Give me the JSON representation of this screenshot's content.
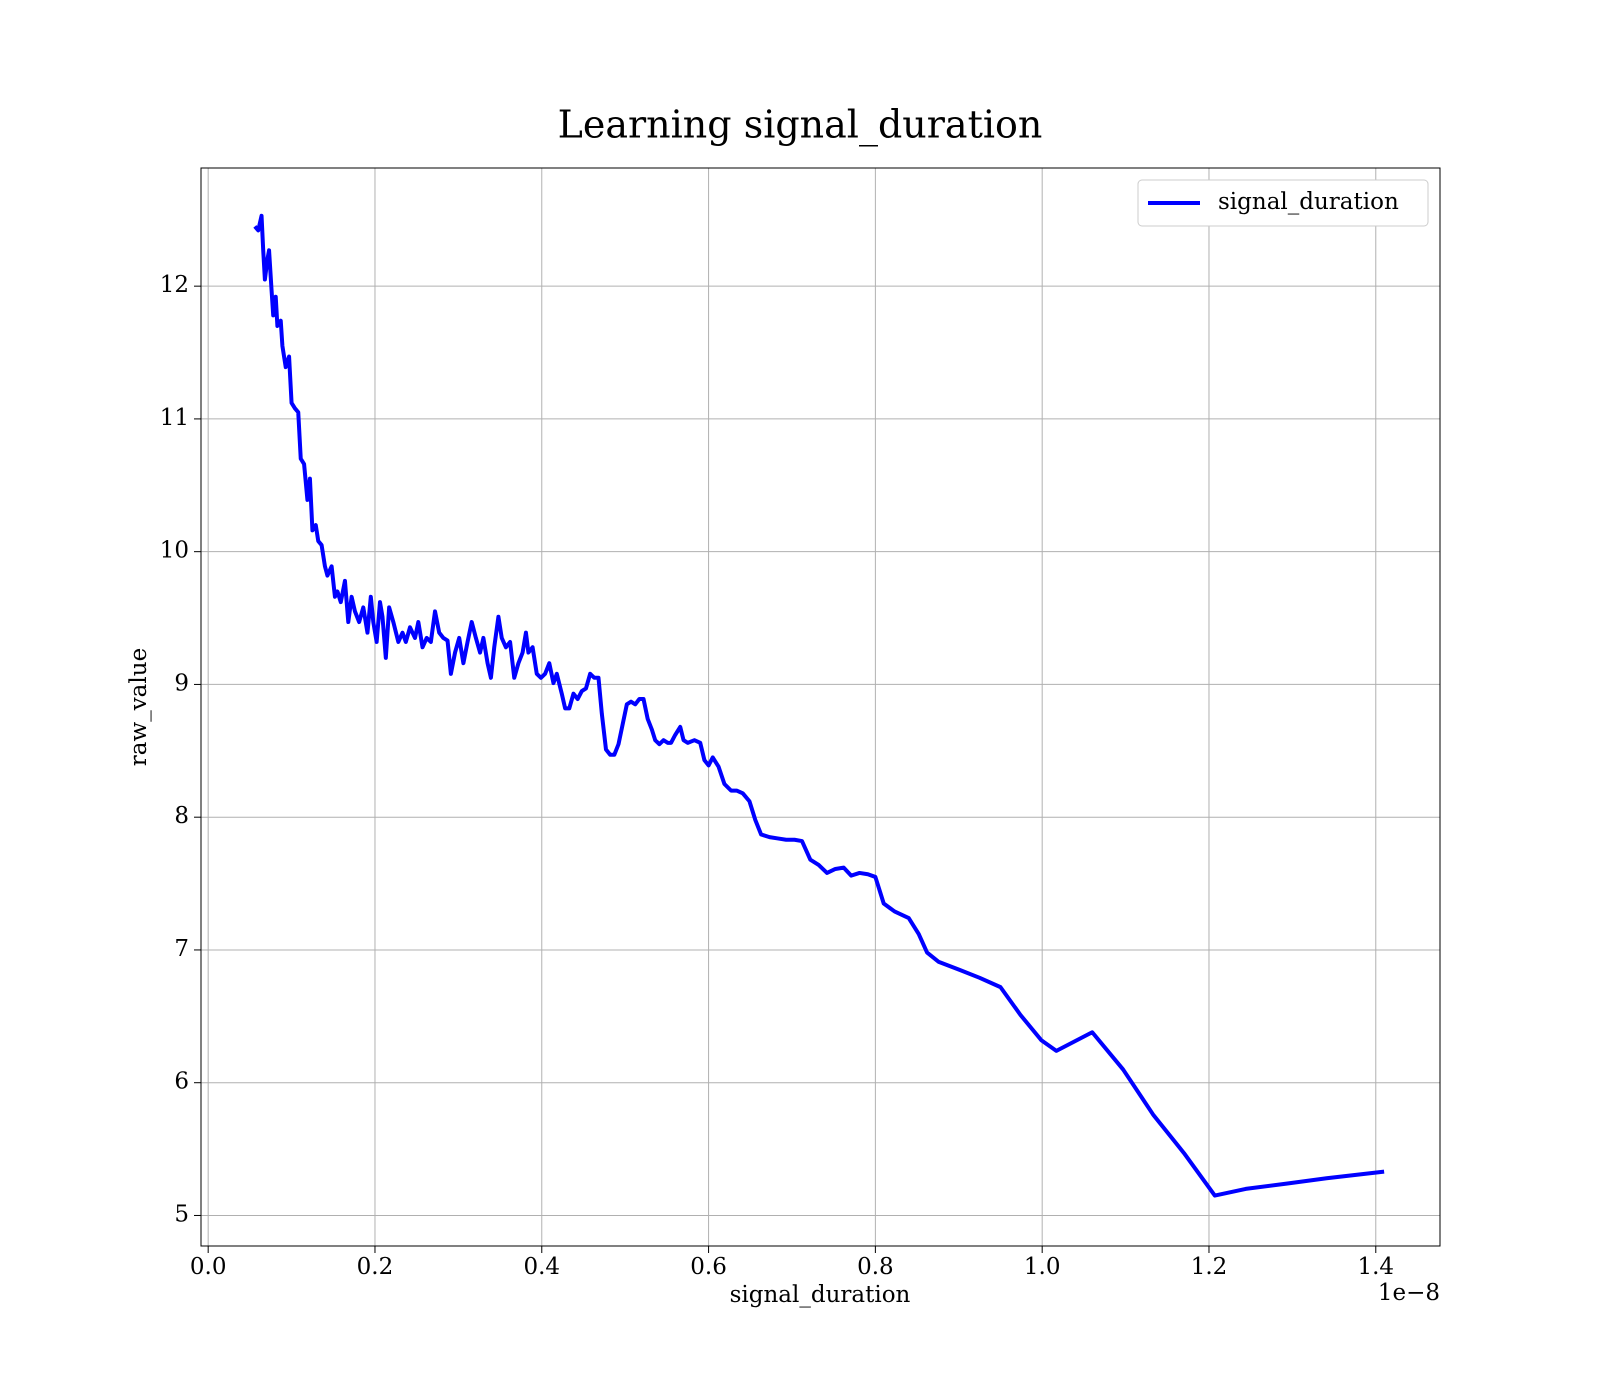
{
  "chart_data": {
    "type": "line",
    "title": "Learning signal_duration",
    "x_label": "signal_duration",
    "y_label": "raw_value",
    "x_offset_label": "1e−8",
    "legend": "upper right",
    "grid": true,
    "xlim": [
      -0.0086,
      1.477
    ],
    "ylim": [
      4.77,
      12.89
    ],
    "xticks": [
      {
        "value": 0,
        "label": "0.0"
      },
      0.2,
      0.4,
      0.6,
      0.8,
      {
        "value": 1,
        "label": "1.0"
      },
      1.2,
      1.4
    ],
    "yticks": [
      5,
      6,
      7,
      8,
      9,
      10,
      11,
      12
    ],
    "x": [
      0.056,
      0.06,
      0.064,
      0.066,
      0.068,
      0.071,
      0.073,
      0.076,
      0.078,
      0.081,
      0.083,
      0.087,
      0.089,
      0.093,
      0.097,
      0.1,
      0.104,
      0.108,
      0.111,
      0.115,
      0.119,
      0.122,
      0.125,
      0.129,
      0.132,
      0.136,
      0.14,
      0.143,
      0.148,
      0.152,
      0.155,
      0.159,
      0.164,
      0.168,
      0.172,
      0.176,
      0.181,
      0.186,
      0.191,
      0.195,
      0.198,
      0.202,
      0.206,
      0.209,
      0.213,
      0.217,
      0.222,
      0.228,
      0.233,
      0.237,
      0.242,
      0.248,
      0.252,
      0.257,
      0.262,
      0.267,
      0.272,
      0.277,
      0.282,
      0.287,
      0.291,
      0.296,
      0.301,
      0.306,
      0.311,
      0.316,
      0.321,
      0.326,
      0.33,
      0.335,
      0.339,
      0.343,
      0.348,
      0.352,
      0.357,
      0.362,
      0.367,
      0.372,
      0.377,
      0.381,
      0.384,
      0.389,
      0.394,
      0.399,
      0.404,
      0.409,
      0.414,
      0.418,
      0.424,
      0.428,
      0.433,
      0.438,
      0.443,
      0.448,
      0.453,
      0.458,
      0.463,
      0.468,
      0.472,
      0.477,
      0.482,
      0.487,
      0.492,
      0.497,
      0.502,
      0.507,
      0.512,
      0.517,
      0.522,
      0.527,
      0.532,
      0.536,
      0.541,
      0.546,
      0.551,
      0.555,
      0.56,
      0.566,
      0.57,
      0.575,
      0.583,
      0.59,
      0.595,
      0.6,
      0.605,
      0.612,
      0.619,
      0.627,
      0.634,
      0.641,
      0.649,
      0.656,
      0.663,
      0.673,
      0.683,
      0.693,
      0.703,
      0.712,
      0.722,
      0.732,
      0.742,
      0.752,
      0.762,
      0.771,
      0.781,
      0.791,
      0.8,
      0.81,
      0.823,
      0.84,
      0.852,
      0.862,
      0.876,
      0.901,
      0.925,
      0.95,
      0.974,
      0.999,
      1.017,
      1.06,
      1.097,
      1.133,
      1.17,
      1.207,
      1.244,
      1.293,
      1.341,
      1.41
    ],
    "series": [
      {
        "name": "signal_duration",
        "color": "#0000ff",
        "values": [
          12.45,
          12.42,
          12.53,
          12.27,
          12.05,
          12.2,
          12.27,
          11.97,
          11.78,
          11.92,
          11.7,
          11.74,
          11.55,
          11.39,
          11.47,
          11.12,
          11.08,
          11.05,
          10.7,
          10.66,
          10.39,
          10.55,
          10.16,
          10.2,
          10.08,
          10.05,
          9.89,
          9.82,
          9.89,
          9.66,
          9.7,
          9.62,
          9.78,
          9.47,
          9.66,
          9.55,
          9.47,
          9.58,
          9.39,
          9.66,
          9.47,
          9.32,
          9.62,
          9.51,
          9.2,
          9.58,
          9.47,
          9.32,
          9.39,
          9.32,
          9.43,
          9.35,
          9.47,
          9.28,
          9.35,
          9.32,
          9.55,
          9.39,
          9.35,
          9.33,
          9.08,
          9.24,
          9.35,
          9.16,
          9.32,
          9.47,
          9.35,
          9.24,
          9.35,
          9.16,
          9.05,
          9.28,
          9.51,
          9.35,
          9.28,
          9.32,
          9.05,
          9.16,
          9.24,
          9.39,
          9.24,
          9.28,
          9.08,
          9.05,
          9.08,
          9.16,
          9.01,
          9.08,
          8.93,
          8.82,
          8.82,
          8.93,
          8.89,
          8.95,
          8.97,
          9.08,
          9.05,
          9.05,
          8.78,
          8.51,
          8.47,
          8.47,
          8.55,
          8.7,
          8.85,
          8.87,
          8.85,
          8.89,
          8.89,
          8.74,
          8.66,
          8.58,
          8.55,
          8.58,
          8.56,
          8.56,
          8.62,
          8.68,
          8.58,
          8.56,
          8.58,
          8.56,
          8.43,
          8.39,
          8.45,
          8.38,
          8.25,
          8.2,
          8.2,
          8.18,
          8.12,
          7.98,
          7.87,
          7.85,
          7.84,
          7.83,
          7.83,
          7.82,
          7.68,
          7.64,
          7.58,
          7.61,
          7.62,
          7.56,
          7.58,
          7.57,
          7.55,
          7.35,
          7.29,
          7.24,
          7.12,
          6.98,
          6.91,
          6.85,
          6.79,
          6.72,
          6.51,
          6.32,
          6.24,
          6.38,
          6.1,
          5.76,
          5.47,
          5.15,
          5.2,
          5.24,
          5.28,
          5.33
        ]
      }
    ]
  }
}
